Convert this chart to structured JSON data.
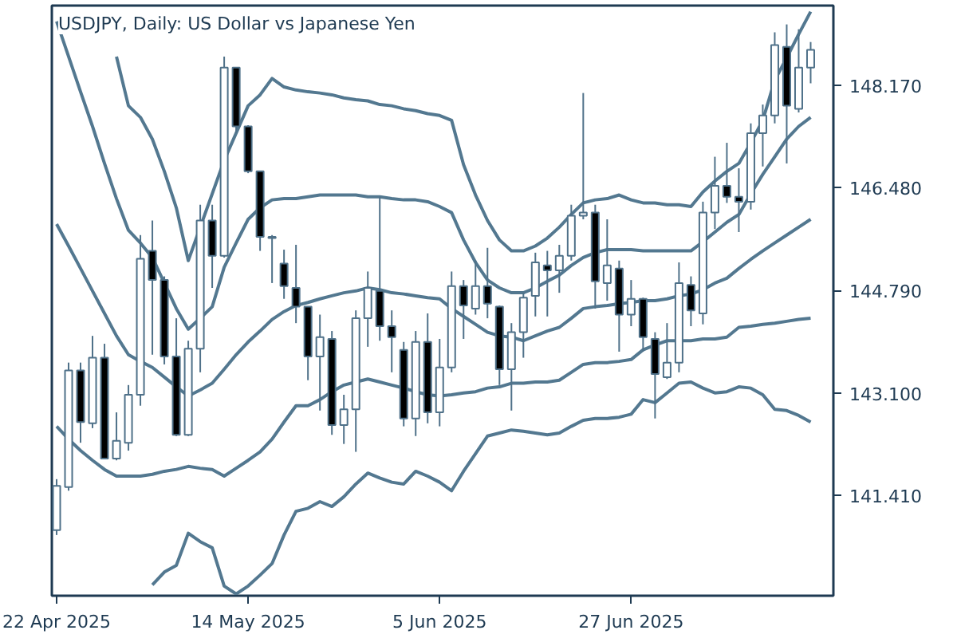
{
  "chart_data": {
    "type": "candlestick",
    "title": "USDJPY, Daily:  US Dollar vs Japanese Yen",
    "categories": [
      "22 Apr 2025",
      null,
      null,
      null,
      null,
      null,
      null,
      null,
      null,
      null,
      null,
      null,
      null,
      null,
      null,
      null,
      "14 May 2025",
      null,
      null,
      null,
      null,
      null,
      null,
      null,
      null,
      null,
      null,
      null,
      null,
      null,
      null,
      null,
      "5 Jun 2025",
      null,
      null,
      null,
      null,
      null,
      null,
      null,
      null,
      null,
      null,
      null,
      null,
      null,
      null,
      null,
      "27 Jun 2025",
      null,
      null,
      null,
      null,
      null,
      null,
      null,
      null,
      null,
      null,
      null,
      null,
      null,
      null,
      null
    ],
    "color": "#4f7189",
    "ohlc": [
      [
        140.84,
        141.68,
        140.76,
        141.57
      ],
      [
        141.55,
        143.6,
        141.49,
        143.47
      ],
      [
        143.47,
        143.6,
        142.28,
        142.62
      ],
      [
        142.6,
        144.04,
        142.52,
        143.68
      ],
      [
        143.68,
        143.91,
        142.02,
        142.02
      ],
      [
        142.02,
        142.78,
        141.99,
        142.31
      ],
      [
        142.28,
        143.23,
        142.15,
        143.07
      ],
      [
        143.07,
        145.7,
        142.89,
        145.31
      ],
      [
        145.44,
        145.94,
        143.73,
        144.96
      ],
      [
        144.96,
        145.02,
        143.57,
        143.7
      ],
      [
        143.7,
        144.33,
        142.39,
        142.41
      ],
      [
        142.41,
        143.96,
        142.39,
        143.83
      ],
      [
        143.83,
        146.2,
        143.44,
        145.94
      ],
      [
        145.94,
        146.2,
        144.83,
        145.36
      ],
      [
        145.36,
        148.64,
        145.33,
        148.46
      ],
      [
        148.46,
        148.46,
        147.38,
        147.49
      ],
      [
        147.49,
        147.51,
        146.72,
        146.75
      ],
      [
        146.75,
        146.75,
        145.44,
        145.67
      ],
      [
        145.67,
        145.7,
        144.91,
        145.65
      ],
      [
        145.23,
        145.46,
        144.65,
        144.86
      ],
      [
        144.83,
        145.54,
        144.25,
        144.52
      ],
      [
        144.52,
        144.52,
        143.31,
        143.7
      ],
      [
        143.7,
        144.39,
        142.81,
        144.02
      ],
      [
        143.99,
        144.12,
        142.41,
        142.57
      ],
      [
        142.57,
        143.07,
        142.26,
        142.83
      ],
      [
        142.83,
        144.46,
        142.13,
        144.33
      ],
      [
        144.33,
        145.1,
        143.86,
        144.83
      ],
      [
        144.78,
        146.33,
        143.96,
        144.2
      ],
      [
        144.2,
        144.46,
        143.44,
        144.02
      ],
      [
        143.81,
        143.94,
        142.55,
        142.68
      ],
      [
        142.68,
        144.12,
        142.39,
        143.94
      ],
      [
        143.94,
        144.41,
        142.6,
        142.78
      ],
      [
        142.78,
        143.99,
        142.55,
        143.52
      ],
      [
        143.52,
        145.1,
        143.44,
        144.86
      ],
      [
        144.86,
        144.96,
        143.99,
        144.54
      ],
      [
        144.49,
        145.28,
        144.39,
        144.86
      ],
      [
        144.86,
        145.49,
        144.33,
        144.57
      ],
      [
        144.52,
        144.54,
        143.23,
        143.49
      ],
      [
        143.49,
        144.25,
        142.81,
        144.1
      ],
      [
        144.1,
        144.75,
        143.68,
        144.67
      ],
      [
        144.7,
        145.41,
        144.36,
        145.25
      ],
      [
        145.2,
        145.44,
        144.36,
        145.12
      ],
      [
        145.12,
        145.54,
        144.75,
        145.36
      ],
      [
        145.36,
        146.2,
        145.28,
        146.02
      ],
      [
        146.02,
        148.04,
        145.96,
        146.07
      ],
      [
        146.07,
        146.2,
        144.49,
        144.94
      ],
      [
        144.91,
        145.96,
        144.62,
        145.2
      ],
      [
        145.15,
        145.28,
        143.78,
        144.39
      ],
      [
        144.39,
        144.96,
        144.2,
        144.65
      ],
      [
        144.65,
        144.67,
        143.78,
        144.02
      ],
      [
        143.99,
        144.1,
        142.68,
        143.41
      ],
      [
        143.36,
        144.25,
        143.33,
        143.6
      ],
      [
        143.6,
        145.25,
        143.44,
        144.91
      ],
      [
        144.88,
        145.02,
        144.2,
        144.46
      ],
      [
        144.41,
        146.25,
        144.23,
        146.07
      ],
      [
        146.07,
        146.99,
        145.8,
        146.51
      ],
      [
        146.51,
        147.22,
        146.23,
        146.33
      ],
      [
        146.33,
        146.8,
        145.75,
        146.25
      ],
      [
        146.25,
        147.54,
        146.12,
        147.38
      ],
      [
        147.38,
        147.85,
        146.83,
        147.67
      ],
      [
        147.67,
        149.04,
        147.54,
        148.83
      ],
      [
        148.8,
        149.17,
        146.88,
        147.83
      ],
      [
        147.78,
        149.09,
        147.72,
        148.46
      ],
      [
        148.46,
        148.88,
        148.2,
        148.75
      ]
    ],
    "series": [
      {
        "type": "line",
        "color": "#537890",
        "values": [
          null,
          null,
          null,
          null,
          null,
          148.64,
          147.83,
          147.64,
          147.28,
          146.75,
          146.15,
          145.28,
          145.83,
          146.38,
          146.93,
          147.38,
          147.83,
          148.01,
          148.28,
          148.14,
          148.09,
          148.06,
          148.04,
          148.01,
          147.96,
          147.93,
          147.91,
          147.85,
          147.83,
          147.78,
          147.75,
          147.7,
          147.67,
          147.59,
          146.86,
          146.36,
          145.94,
          145.62,
          145.44,
          145.44,
          145.52,
          145.65,
          145.83,
          146.04,
          146.23,
          146.28,
          146.3,
          146.36,
          146.28,
          146.23,
          146.23,
          146.2,
          146.2,
          146.17,
          146.41,
          146.59,
          146.75,
          146.88,
          147.22,
          147.59,
          148.25,
          148.62,
          149.01,
          149.38
        ]
      },
      {
        "type": "line",
        "color": "#537890",
        "values": [
          149.22,
          148.64,
          148.06,
          147.49,
          146.88,
          146.3,
          145.78,
          145.57,
          145.33,
          144.91,
          144.49,
          144.15,
          144.33,
          144.52,
          145.17,
          145.57,
          145.96,
          146.15,
          146.28,
          146.3,
          146.3,
          146.33,
          146.36,
          146.36,
          146.36,
          146.36,
          146.33,
          146.33,
          146.3,
          146.28,
          146.28,
          146.25,
          146.17,
          146.07,
          145.62,
          145.25,
          144.96,
          144.83,
          144.75,
          144.75,
          144.83,
          144.94,
          145.04,
          145.2,
          145.33,
          145.41,
          145.46,
          145.46,
          145.46,
          145.44,
          145.44,
          145.44,
          145.44,
          145.44,
          145.59,
          145.75,
          145.91,
          146.04,
          146.38,
          146.7,
          146.99,
          147.28,
          147.49,
          147.64
        ]
      },
      {
        "type": "line",
        "color": "#537890",
        "values": [
          145.88,
          145.52,
          145.15,
          144.78,
          144.41,
          144.04,
          143.73,
          143.62,
          143.52,
          143.36,
          143.2,
          143.05,
          143.15,
          143.26,
          143.49,
          143.73,
          143.94,
          144.12,
          144.31,
          144.44,
          144.54,
          144.59,
          144.65,
          144.7,
          144.75,
          144.78,
          144.83,
          144.8,
          144.75,
          144.73,
          144.7,
          144.67,
          144.65,
          144.49,
          144.36,
          144.23,
          144.1,
          144.04,
          144.02,
          143.96,
          144.04,
          144.12,
          144.18,
          144.33,
          144.49,
          144.52,
          144.54,
          144.57,
          144.59,
          144.62,
          144.62,
          144.65,
          144.7,
          144.73,
          144.8,
          144.91,
          144.99,
          145.15,
          145.3,
          145.44,
          145.57,
          145.7,
          145.83,
          145.96
        ]
      },
      {
        "type": "line",
        "color": "#537890",
        "values": [
          142.55,
          142.34,
          142.15,
          141.99,
          141.84,
          141.73,
          141.73,
          141.73,
          141.76,
          141.81,
          141.84,
          141.89,
          141.86,
          141.84,
          141.73,
          141.86,
          141.99,
          142.13,
          142.34,
          142.62,
          142.89,
          142.89,
          142.99,
          143.12,
          143.23,
          143.28,
          143.33,
          143.28,
          143.23,
          143.18,
          143.12,
          143.07,
          143.05,
          143.07,
          143.1,
          143.12,
          143.18,
          143.2,
          143.26,
          143.26,
          143.28,
          143.28,
          143.31,
          143.44,
          143.57,
          143.6,
          143.6,
          143.62,
          143.65,
          143.81,
          143.89,
          143.96,
          143.96,
          143.96,
          143.99,
          143.99,
          144.02,
          144.18,
          144.2,
          144.23,
          144.25,
          144.28,
          144.31,
          144.33
        ]
      },
      {
        "type": "line",
        "color": "#537890",
        "values": [
          null,
          null,
          null,
          null,
          null,
          null,
          null,
          null,
          139.94,
          140.15,
          140.26,
          140.79,
          140.65,
          140.55,
          139.92,
          139.79,
          139.92,
          140.1,
          140.29,
          140.76,
          141.15,
          141.2,
          141.31,
          141.23,
          141.39,
          141.6,
          141.78,
          141.7,
          141.63,
          141.6,
          141.81,
          141.73,
          141.63,
          141.49,
          141.81,
          142.1,
          142.39,
          142.44,
          142.49,
          142.47,
          142.44,
          142.41,
          142.44,
          142.55,
          142.65,
          142.68,
          142.68,
          142.7,
          142.75,
          142.99,
          142.94,
          143.1,
          143.26,
          143.28,
          143.18,
          143.1,
          143.12,
          143.2,
          143.18,
          143.07,
          142.83,
          142.81,
          142.73,
          142.62
        ]
      }
    ],
    "ylim": [
      139.76,
      149.48
    ],
    "yticks": [
      {
        "value": 141.41,
        "label": "141.410"
      },
      {
        "value": 143.1,
        "label": "143.100"
      },
      {
        "value": 144.79,
        "label": "144.790"
      },
      {
        "value": 146.48,
        "label": "146.480"
      },
      {
        "value": 148.17,
        "label": "148.170"
      }
    ]
  }
}
